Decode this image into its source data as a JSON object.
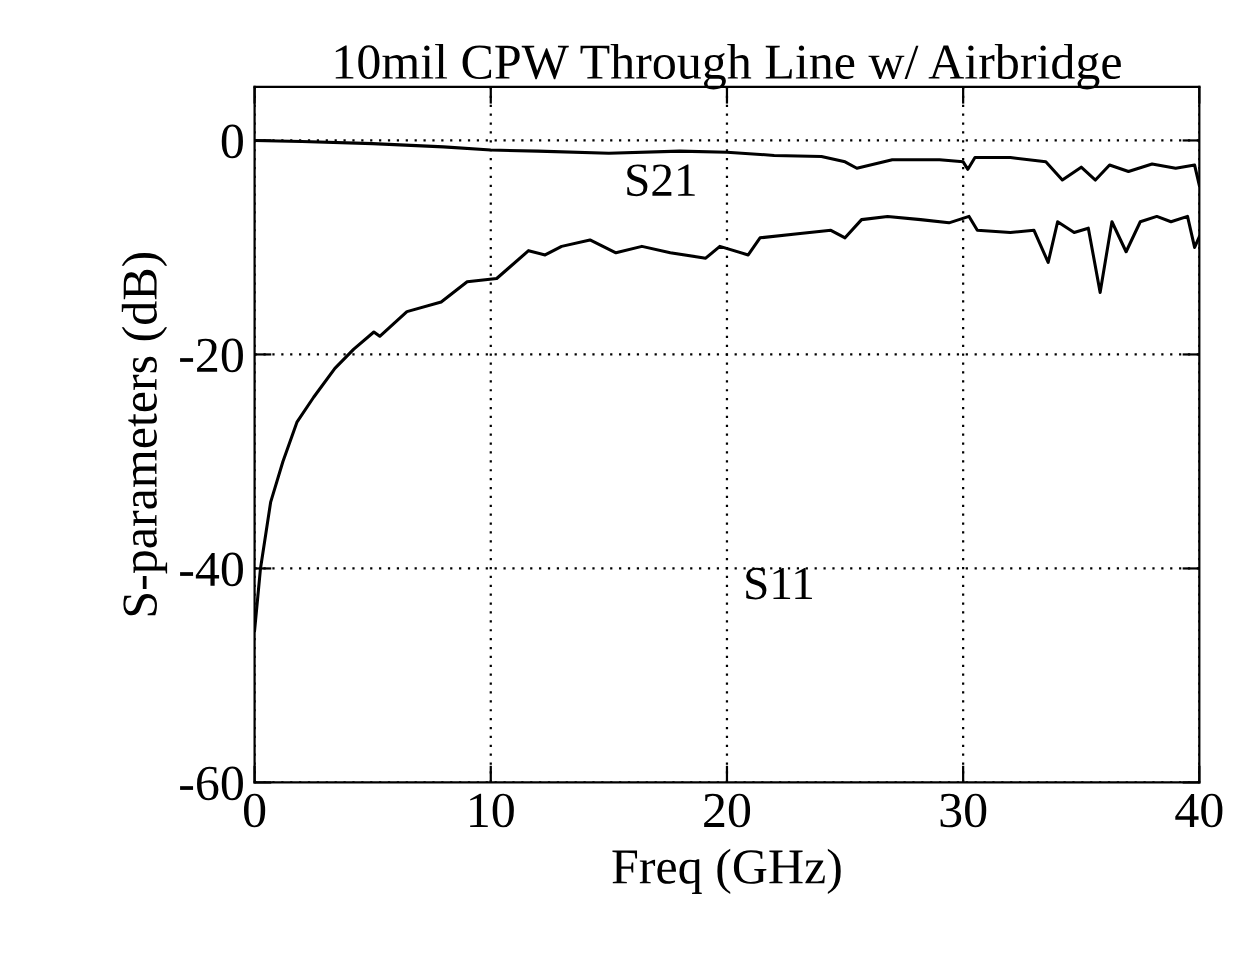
{
  "chart_data": {
    "type": "line",
    "title": "10mil CPW Through Line w/ Airbridge",
    "xlabel": "Freq (GHz)",
    "ylabel": "S-parameters (dB)",
    "xlim": [
      0,
      40
    ],
    "xticks": [
      0,
      10,
      20,
      30,
      40
    ],
    "ylim": [
      -60,
      5
    ],
    "yticks": [
      -60,
      -40,
      -20,
      0
    ],
    "grid": true,
    "line_style": "solid",
    "marker": "none",
    "series": [
      {
        "color": "#000000",
        "x": [
          0,
          2,
          5,
          8,
          10,
          12,
          15,
          18,
          20,
          22,
          24,
          25,
          25.5,
          27,
          29,
          30,
          30.2,
          30.5,
          32,
          33.5,
          34.2,
          35,
          35.6,
          36.2,
          37,
          38,
          39,
          39.8,
          40
        ],
        "values": [
          0,
          -0.1,
          -0.3,
          -0.6,
          -0.9,
          -1.0,
          -1.2,
          -1.0,
          -1.1,
          -1.4,
          -1.5,
          -2.0,
          -2.6,
          -1.8,
          -1.8,
          -2.0,
          -2.7,
          -1.6,
          -1.6,
          -2.0,
          -3.7,
          -2.5,
          -3.7,
          -2.3,
          -2.9,
          -2.2,
          -2.6,
          -2.3,
          -4.2
        ]
      },
      {
        "color": "#000000",
        "x": [
          0,
          0.25,
          0.68,
          1.2,
          1.8,
          2.5,
          3.4,
          4.2,
          5.05,
          5.3,
          6.45,
          7.9,
          9.0,
          10.25,
          11.6,
          12.3,
          13,
          14.2,
          15.3,
          16.4,
          17.6,
          19.1,
          19.7,
          20.9,
          21.4,
          23.1,
          24.4,
          25,
          25.7,
          26.8,
          28.2,
          29.4,
          30.25,
          30.6,
          32,
          33,
          33.6,
          34,
          34.7,
          35.3,
          35.8,
          36.3,
          36.9,
          37.5,
          38.2,
          38.8,
          39.5,
          39.8,
          40
        ],
        "values": [
          -45.8,
          -40,
          -33.8,
          -30,
          -26.3,
          -24,
          -21.3,
          -19.5,
          -17.9,
          -18.3,
          -16,
          -15.1,
          -13.2,
          -12.9,
          -10.3,
          -10.7,
          -9.9,
          -9.3,
          -10.5,
          -9.9,
          -10.5,
          -11,
          -9.9,
          -10.7,
          -9.1,
          -8.7,
          -8.4,
          -9.1,
          -7.4,
          -7.1,
          -7.4,
          -7.7,
          -7.1,
          -8.4,
          -8.6,
          -8.4,
          -11.4,
          -7.6,
          -8.6,
          -8.2,
          -14.2,
          -7.6,
          -10.4,
          -7.6,
          -7.1,
          -7.6,
          -7.1,
          -10,
          -9
        ]
      }
    ],
    "annotations": [
      "S21",
      "S11"
    ]
  }
}
